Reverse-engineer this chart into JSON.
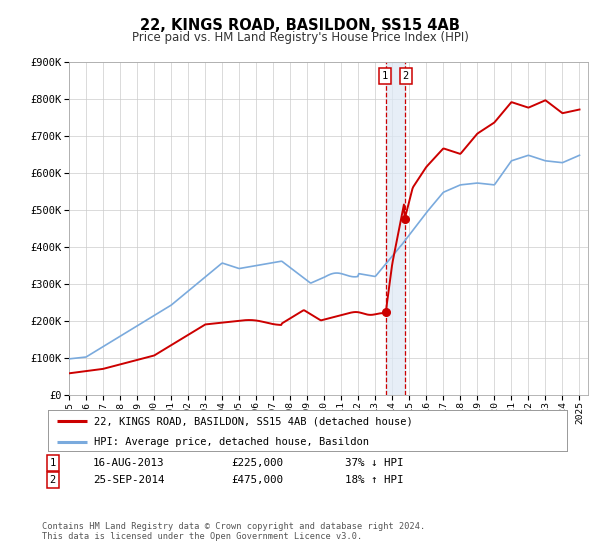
{
  "title": "22, KINGS ROAD, BASILDON, SS15 4AB",
  "subtitle": "Price paid vs. HM Land Registry's House Price Index (HPI)",
  "legend_label_red": "22, KINGS ROAD, BASILDON, SS15 4AB (detached house)",
  "legend_label_blue": "HPI: Average price, detached house, Basildon",
  "transaction1_date": "16-AUG-2013",
  "transaction1_price": "£225,000",
  "transaction1_hpi": "37% ↓ HPI",
  "transaction2_date": "25-SEP-2014",
  "transaction2_price": "£475,000",
  "transaction2_hpi": "18% ↑ HPI",
  "footnote_line1": "Contains HM Land Registry data © Crown copyright and database right 2024.",
  "footnote_line2": "This data is licensed under the Open Government Licence v3.0.",
  "color_red": "#cc0000",
  "color_blue": "#7aaadd",
  "color_vband": "#dde8f5",
  "xmin": 1995.0,
  "xmax": 2025.5,
  "ymin": 0,
  "ymax": 900000,
  "transaction1_x": 2013.62,
  "transaction1_y_red": 225000,
  "transaction2_x": 2014.73,
  "transaction2_y_red": 475000,
  "background_color": "#ffffff",
  "grid_color": "#cccccc"
}
